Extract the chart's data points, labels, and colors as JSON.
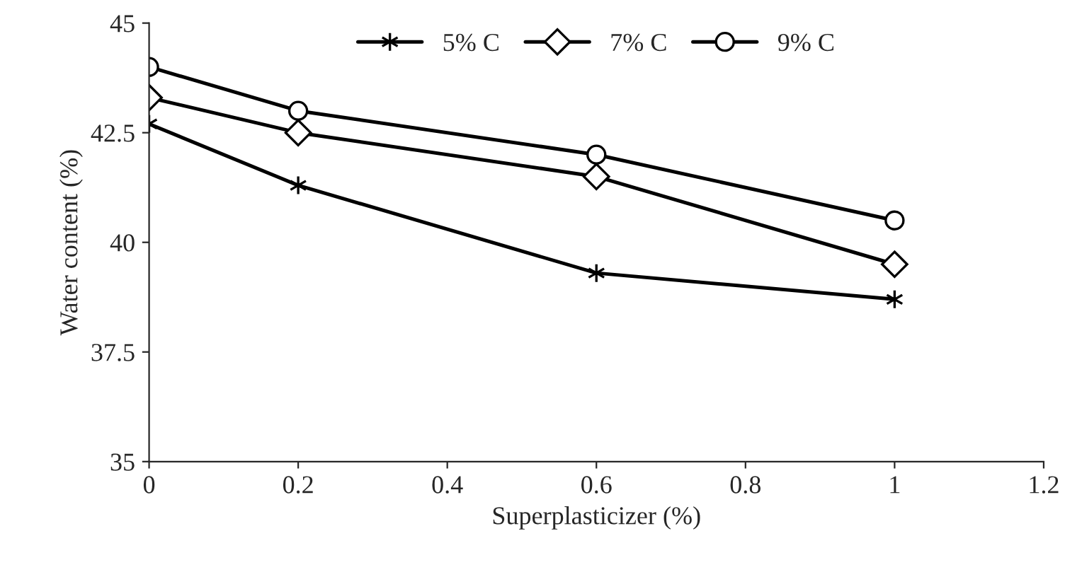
{
  "chart_data": {
    "type": "line",
    "xlabel": "Superplasticizer (%)",
    "ylabel": "Water content (%)",
    "x": [
      0,
      0.2,
      0.6,
      1
    ],
    "series": [
      {
        "name": "5% C",
        "color": "#000000",
        "marker": "cross",
        "values": [
          42.7,
          41.3,
          39.3,
          38.7
        ]
      },
      {
        "name": "7% C",
        "color": "#000000",
        "marker": "diamond",
        "values": [
          43.3,
          42.5,
          41.5,
          39.5
        ]
      },
      {
        "name": "9% C",
        "color": "#000000",
        "marker": "circle",
        "values": [
          44.0,
          43.0,
          42.0,
          40.5
        ]
      }
    ],
    "xlim": [
      0,
      1.2
    ],
    "xticks": [
      0,
      0.2,
      0.4,
      0.6,
      0.8,
      1,
      1.2
    ],
    "ylim": [
      35,
      45
    ],
    "yticks": [
      35,
      37.5,
      40,
      42.5,
      45
    ],
    "grid": false,
    "legend": "top",
    "line_style": "solid"
  }
}
